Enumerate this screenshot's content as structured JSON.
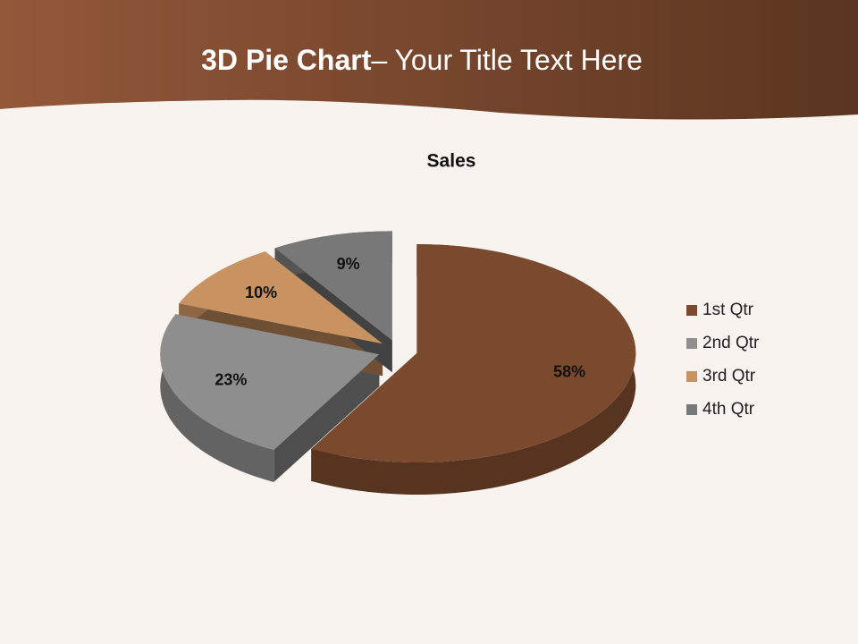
{
  "slide": {
    "title_bold": "3D Pie Chart",
    "title_rest": "– Your Title Text Here"
  },
  "chart_data": {
    "type": "pie3d",
    "title": "Sales",
    "categories": [
      "1st Qtr",
      "2nd Qtr",
      "3rd Qtr",
      "4th Qtr"
    ],
    "values": [
      58,
      23,
      10,
      9
    ],
    "value_labels": [
      "58%",
      "23%",
      "10%",
      "9%"
    ],
    "colors": [
      "#7b4a2e",
      "#8e8e8e",
      "#c99261",
      "#787878"
    ],
    "legend": "right"
  }
}
